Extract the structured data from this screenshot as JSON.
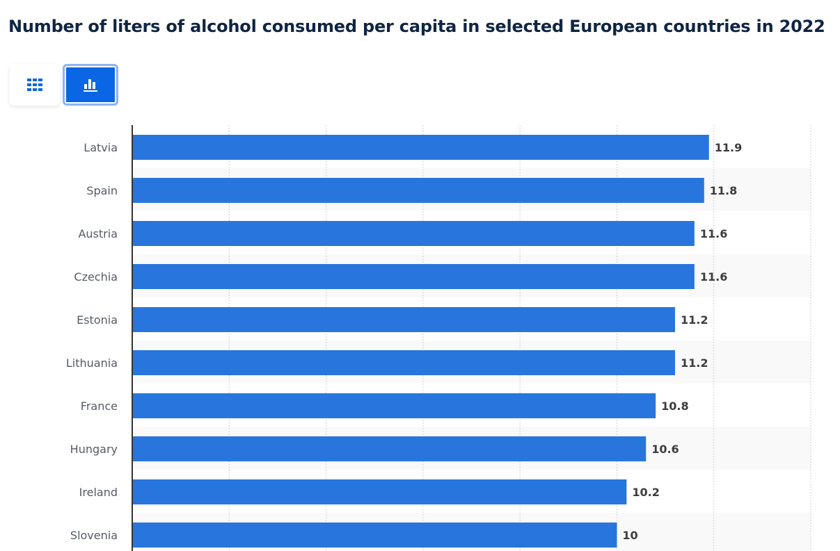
{
  "header": {
    "title": "Number of liters of alcohol consumed per capita in selected European countries in 2022"
  },
  "view_toggle": {
    "table_icon": "grid-table-icon",
    "chart_icon": "bar-chart-icon",
    "active": "chart"
  },
  "colors": {
    "bar": "#2876dd",
    "title": "#0f2542",
    "accent": "#0a66e4"
  },
  "chart_data": {
    "type": "bar",
    "orientation": "horizontal",
    "title": "Number of liters of alcohol consumed per capita in selected European countries in 2022",
    "xlabel": "",
    "ylabel": "",
    "categories": [
      "Latvia",
      "Spain",
      "Austria",
      "Czechia",
      "Estonia",
      "Lithuania",
      "France",
      "Hungary",
      "Ireland",
      "Slovenia"
    ],
    "values": [
      11.9,
      11.8,
      11.6,
      11.6,
      11.2,
      11.2,
      10.8,
      10.6,
      10.2,
      10
    ],
    "value_labels": [
      "11.9",
      "11.8",
      "11.6",
      "11.6",
      "11.2",
      "11.2",
      "10.8",
      "10.6",
      "10.2",
      "10"
    ],
    "xlim": [
      0,
      14
    ],
    "gridlines": [
      0,
      2,
      4,
      6,
      8,
      10,
      12,
      14
    ],
    "grid": true,
    "legend": "none"
  }
}
